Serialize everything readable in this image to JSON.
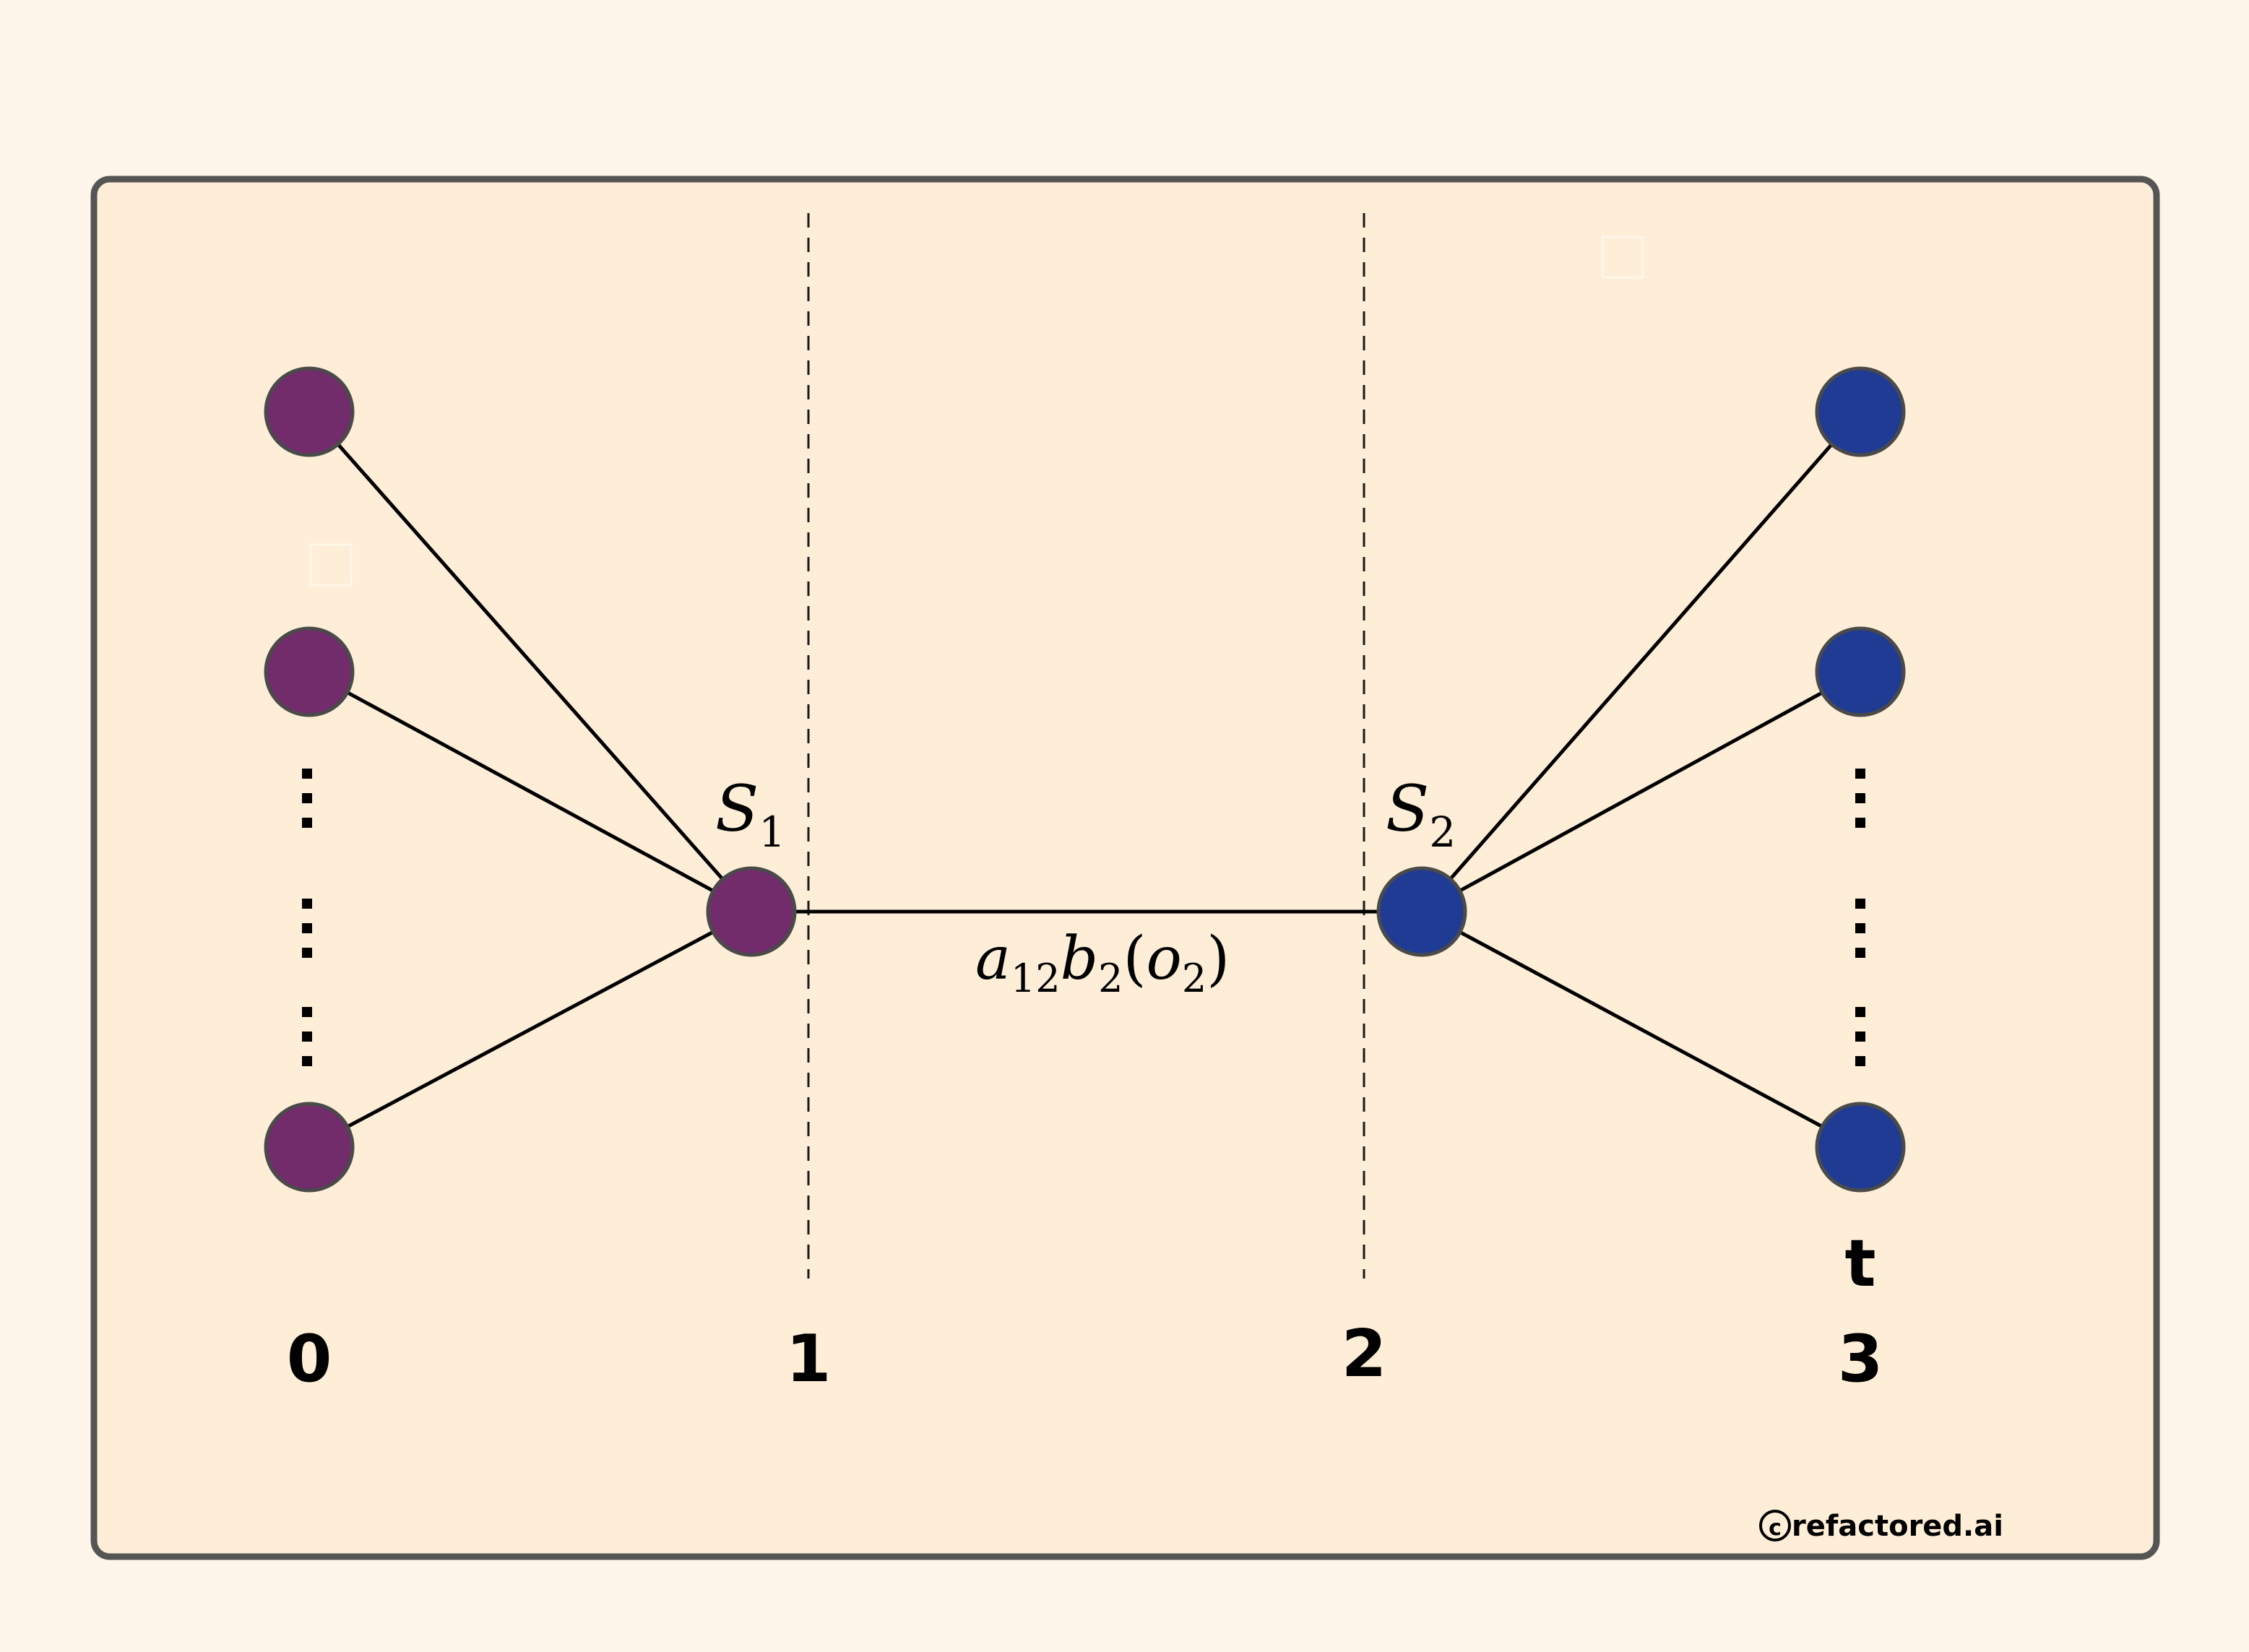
{
  "diagram": {
    "time_labels": [
      "0",
      "1",
      "2",
      "3"
    ],
    "t_label": "t",
    "state_labels": [
      {
        "main": "S",
        "sub": "1"
      },
      {
        "main": "S",
        "sub": "2"
      }
    ],
    "edge_label": {
      "a": "a",
      "a_sub": "12",
      "b": "b",
      "b_sub": "2",
      "paren_open": "(",
      "o": "o",
      "o_sub": "2",
      "paren_close": ")"
    },
    "credit": "refactored.ai",
    "colors": {
      "background": "#fdf5e9",
      "panel": "#feeed7",
      "panel_border": "#555555",
      "left_nodes": "#722c6b",
      "right_nodes": "#1f3b93"
    }
  }
}
